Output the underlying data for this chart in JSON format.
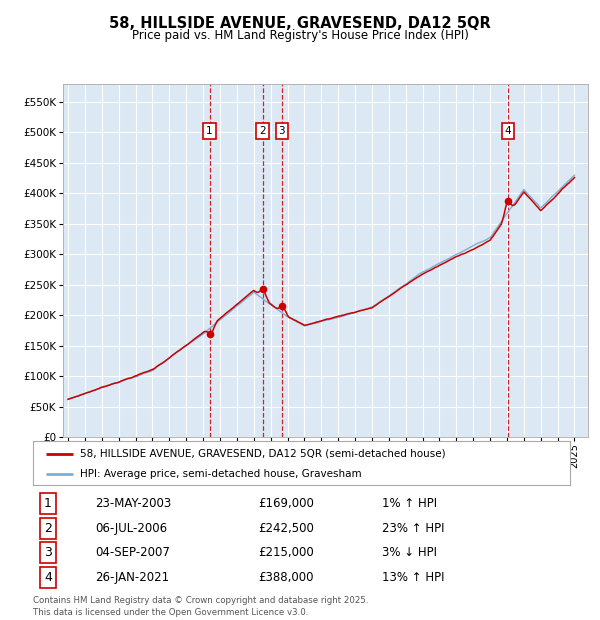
{
  "title": "58, HILLSIDE AVENUE, GRAVESEND, DA12 5QR",
  "subtitle": "Price paid vs. HM Land Registry's House Price Index (HPI)",
  "plot_bg_color": "#dce9f5",
  "red_line_color": "#cc0000",
  "blue_line_color": "#7bafd4",
  "ylim": [
    0,
    580000
  ],
  "yticks": [
    0,
    50000,
    100000,
    150000,
    200000,
    250000,
    300000,
    350000,
    400000,
    450000,
    500000,
    550000
  ],
  "xlim_start": 1994.7,
  "xlim_end": 2025.8,
  "transactions": [
    {
      "label": "1",
      "date": "23-MAY-2003",
      "price": 169000,
      "hpi_pct": "1% ↑ HPI",
      "x_year": 2003.38
    },
    {
      "label": "2",
      "date": "06-JUL-2006",
      "price": 242500,
      "hpi_pct": "23% ↑ HPI",
      "x_year": 2006.52
    },
    {
      "label": "3",
      "date": "04-SEP-2007",
      "price": 215000,
      "hpi_pct": "3% ↓ HPI",
      "x_year": 2007.67
    },
    {
      "label": "4",
      "date": "26-JAN-2021",
      "price": 388000,
      "hpi_pct": "13% ↑ HPI",
      "x_year": 2021.07
    }
  ],
  "legend_entries": [
    "58, HILLSIDE AVENUE, GRAVESEND, DA12 5QR (semi-detached house)",
    "HPI: Average price, semi-detached house, Gravesham"
  ],
  "footer_line1": "Contains HM Land Registry data © Crown copyright and database right 2025.",
  "footer_line2": "This data is licensed under the Open Government Licence v3.0."
}
